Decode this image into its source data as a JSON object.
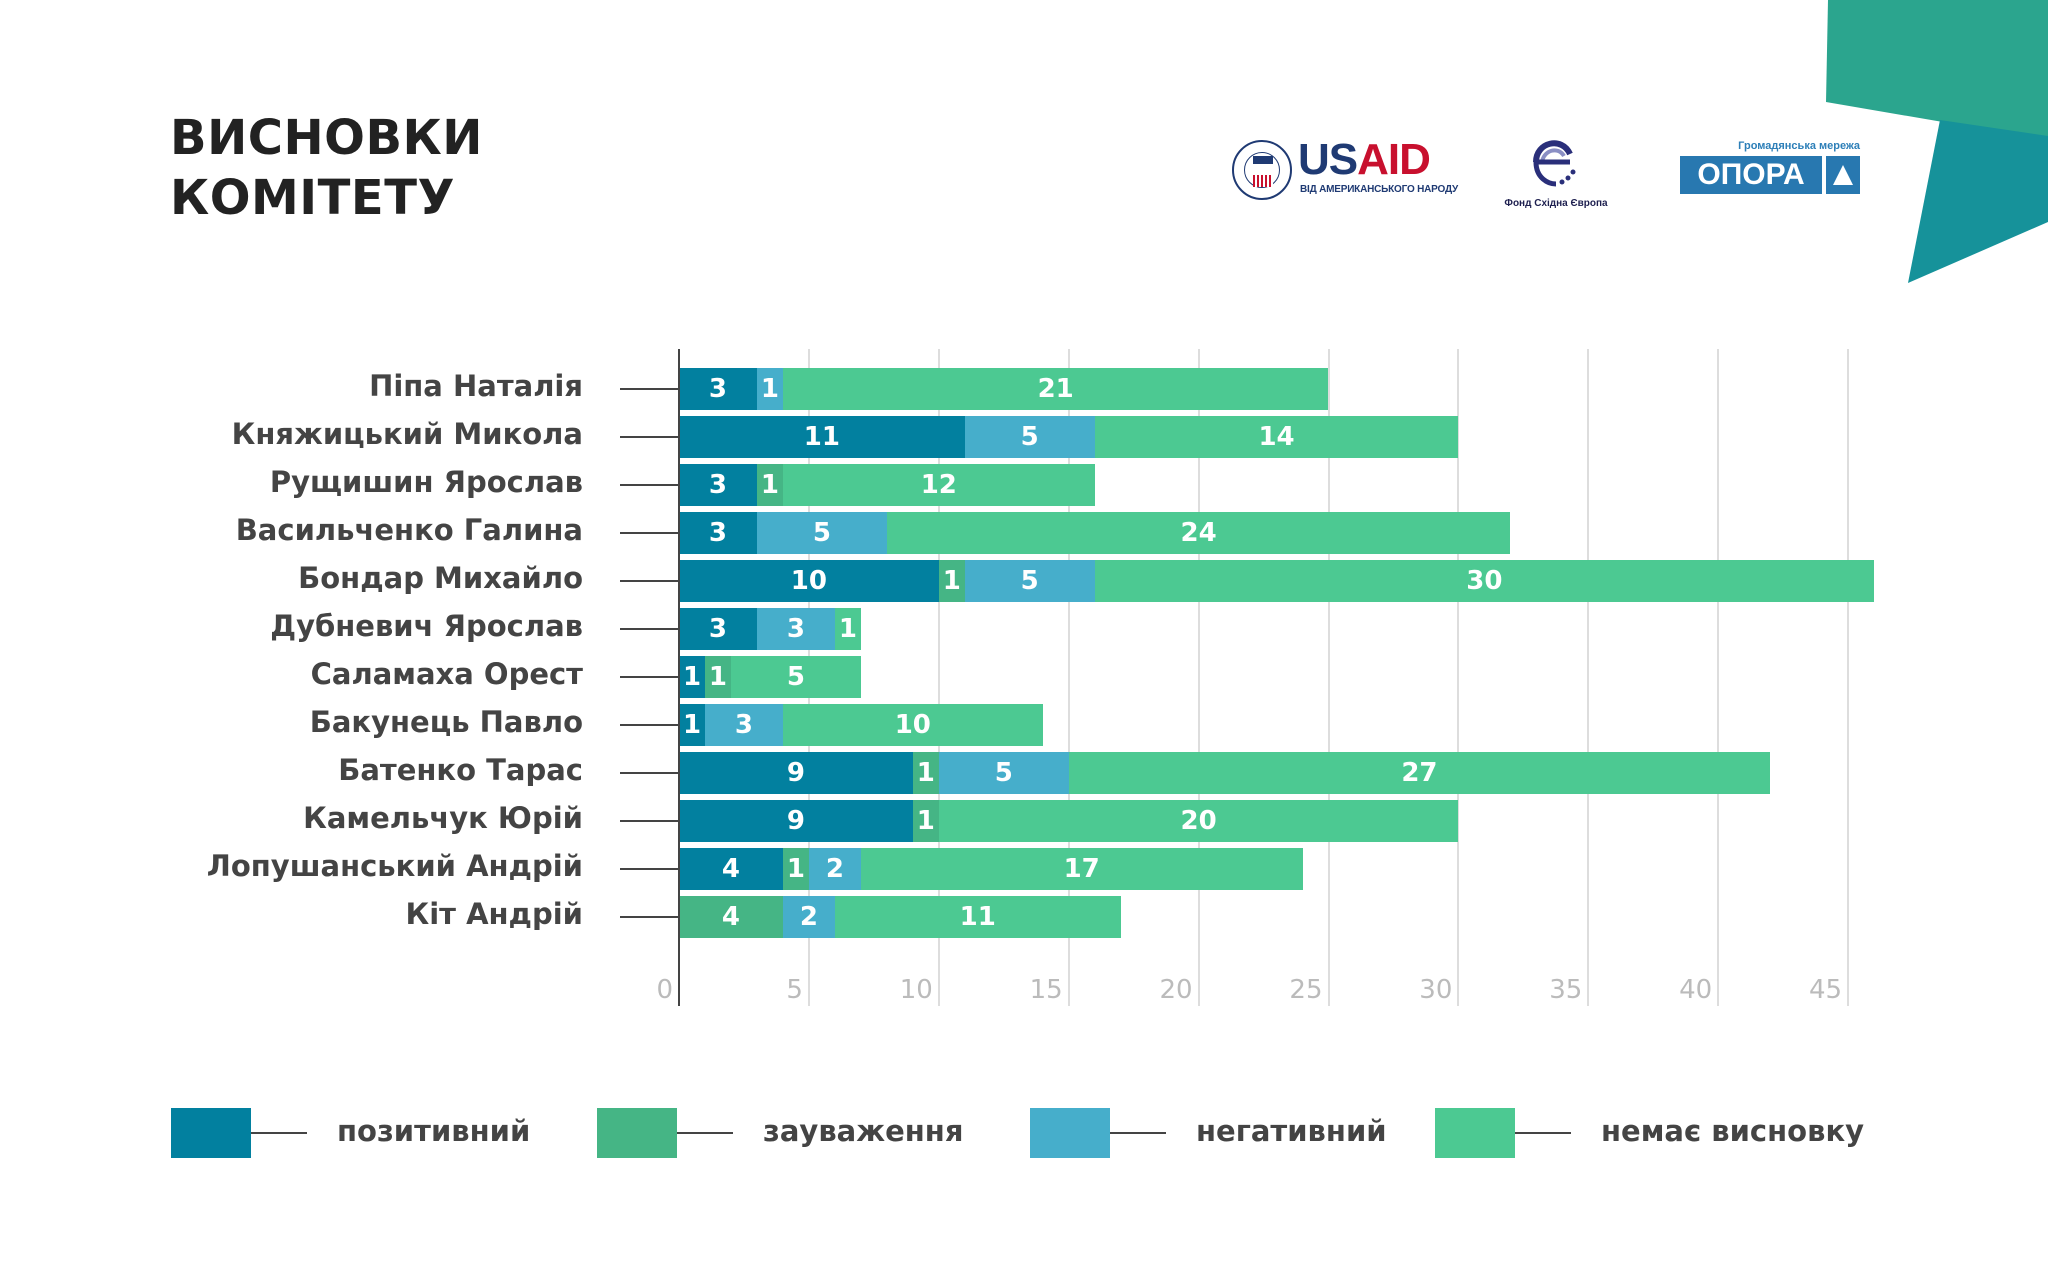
{
  "header": {
    "title_line1": "ВИСНОВКИ",
    "title_line2": "КОМІТЕТУ"
  },
  "logos": {
    "usaid": {
      "seal_text": "USAID",
      "word_us": "US",
      "word_aid": "AID",
      "subtitle": "ВІД АМЕРИКАНСЬКОГО НАРОДУ"
    },
    "east_europe": {
      "caption": "Фонд Східна Європа"
    },
    "opora": {
      "top_text": "Громадянська мережа",
      "name": "ОПОРА"
    }
  },
  "colors": {
    "positive": "#02809f",
    "remarks": "#45b585",
    "negative": "#46aecb",
    "none": "#4cc992",
    "corner_top": "#2ba58e",
    "corner_bottom": "#16929a"
  },
  "chart_data": {
    "type": "bar",
    "orientation": "horizontal",
    "stacked": true,
    "title": "ВИСНОВКИ КОМІТЕТУ",
    "xlabel": "",
    "ylabel": "",
    "xlim": [
      0,
      46
    ],
    "xticks": [
      0,
      5,
      10,
      15,
      20,
      25,
      30,
      35,
      40,
      45
    ],
    "grid": true,
    "legend_position": "bottom",
    "categories": [
      "Піпа Наталія",
      "Княжицький Микола",
      "Рущишин Ярослав",
      "Васильченко Галина",
      "Бондар Михайло",
      "Дубневич Ярослав",
      "Саламаха Орест",
      "Бакунець Павло",
      "Батенко Тарас",
      "Камельчук Юрій",
      "Лопушанський Андрій",
      "Кіт Андрій"
    ],
    "series": [
      {
        "key": "positive",
        "name": "позитивний",
        "values": [
          3,
          11,
          3,
          3,
          10,
          3,
          1,
          1,
          9,
          9,
          4,
          0
        ]
      },
      {
        "key": "remarks",
        "name": "зауваження",
        "values": [
          0,
          0,
          1,
          0,
          1,
          0,
          1,
          0,
          1,
          1,
          1,
          4
        ]
      },
      {
        "key": "negative",
        "name": "негативний",
        "values": [
          1,
          5,
          0,
          5,
          5,
          3,
          0,
          3,
          5,
          0,
          2,
          2
        ]
      },
      {
        "key": "none",
        "name": "немає висновку",
        "values": [
          21,
          14,
          12,
          24,
          30,
          1,
          5,
          10,
          27,
          20,
          17,
          11
        ]
      }
    ]
  }
}
